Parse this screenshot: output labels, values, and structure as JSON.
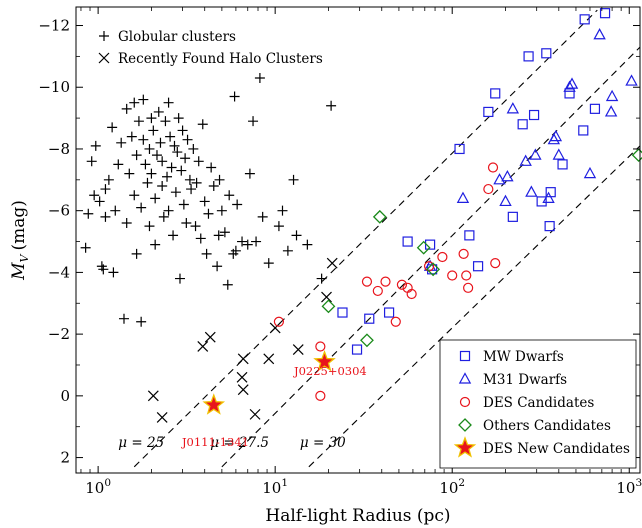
{
  "chart_data": {
    "type": "scatter",
    "xlabel": "Half-light Radius (pc)",
    "ylabel_main": "M",
    "ylabel_sub": "V",
    "ylabel_unit": "(mag)",
    "xscale": "log",
    "xlim": [
      0.75,
      1150
    ],
    "ylim": [
      2.5,
      -12.6
    ],
    "y_inverted": true,
    "x_ticks": [
      {
        "value": 1,
        "base": "10",
        "exp": "0"
      },
      {
        "value": 10,
        "base": "10",
        "exp": "1"
      },
      {
        "value": 100,
        "base": "10",
        "exp": "2"
      },
      {
        "value": 1000,
        "base": "10",
        "exp": "3"
      }
    ],
    "y_ticks": [
      {
        "value": -12,
        "label": "−12"
      },
      {
        "value": -10,
        "label": "−10"
      },
      {
        "value": -8,
        "label": "−8"
      },
      {
        "value": -6,
        "label": "−6"
      },
      {
        "value": -4,
        "label": "−4"
      },
      {
        "value": -2,
        "label": "−2"
      },
      {
        "value": 0,
        "label": "0"
      },
      {
        "value": 2,
        "label": "2"
      }
    ],
    "grid": false,
    "legend_top_left": [
      {
        "name": "Globular clusters",
        "marker": "plus",
        "color": "#000000"
      },
      {
        "name": "Recently Found Halo Clusters",
        "marker": "cross",
        "color": "#000000"
      }
    ],
    "legend_bottom_right": [
      {
        "name": "MW Dwarfs",
        "marker": "square",
        "color": "#1f1fe0"
      },
      {
        "name": "M31 Dwarfs",
        "marker": "triangle",
        "color": "#1f1fe0"
      },
      {
        "name": "DES Candidates",
        "marker": "circle",
        "color": "#e8141c"
      },
      {
        "name": "Others Candidates",
        "marker": "diamond",
        "color": "#1a8a1a"
      },
      {
        "name": "DES New Candidates",
        "marker": "star",
        "color": "#e8141c"
      }
    ],
    "isophotes": [
      {
        "label": "μ = 25",
        "x": [
          1.6,
          660
        ],
        "y": [
          2.3,
          -12.5
        ],
        "label_x": 1.3,
        "label_y": 1.5
      },
      {
        "label": "μ = 27.5",
        "x": [
          5.0,
          1150
        ],
        "y": [
          2.3,
          -11.3
        ],
        "label_x": 4.3,
        "label_y": 1.5
      },
      {
        "label": "μ = 30",
        "x": [
          15.5,
          1150
        ],
        "y": [
          2.3,
          -8.1
        ],
        "label_x": 13.8,
        "label_y": 1.5
      }
    ],
    "series": [
      {
        "name": "Globular clusters",
        "marker": "plus",
        "color": "#000000",
        "points": [
          [
            0.85,
            -4.8
          ],
          [
            0.88,
            -5.9
          ],
          [
            0.92,
            -7.6
          ],
          [
            0.95,
            -6.5
          ],
          [
            0.97,
            -8.1
          ],
          [
            1.02,
            -6.3
          ],
          [
            1.05,
            -4.2
          ],
          [
            1.07,
            -4.1
          ],
          [
            1.1,
            -6.7
          ],
          [
            1.1,
            -5.8
          ],
          [
            1.15,
            -7.0
          ],
          [
            1.2,
            -8.7
          ],
          [
            1.22,
            -4.0
          ],
          [
            1.25,
            -6.0
          ],
          [
            1.3,
            -7.5
          ],
          [
            1.35,
            -8.2
          ],
          [
            1.4,
            -2.5
          ],
          [
            1.45,
            -9.3
          ],
          [
            1.45,
            -5.6
          ],
          [
            1.5,
            -7.2
          ],
          [
            1.55,
            -8.4
          ],
          [
            1.6,
            -6.5
          ],
          [
            1.6,
            -9.5
          ],
          [
            1.65,
            -7.8
          ],
          [
            1.65,
            -4.6
          ],
          [
            1.7,
            -8.9
          ],
          [
            1.75,
            -6.1
          ],
          [
            1.75,
            -2.4
          ],
          [
            1.8,
            -8.3
          ],
          [
            1.8,
            -9.6
          ],
          [
            1.85,
            -7.5
          ],
          [
            1.9,
            -6.9
          ],
          [
            1.95,
            -8.0
          ],
          [
            1.95,
            -5.5
          ],
          [
            2.0,
            -9.0
          ],
          [
            2.0,
            -7.2
          ],
          [
            2.05,
            -8.6
          ],
          [
            2.1,
            -6.4
          ],
          [
            2.1,
            -4.9
          ],
          [
            2.15,
            -7.8
          ],
          [
            2.2,
            -9.2
          ],
          [
            2.25,
            -8.2
          ],
          [
            2.3,
            -6.8
          ],
          [
            2.3,
            -7.6
          ],
          [
            2.35,
            -5.8
          ],
          [
            2.4,
            -8.9
          ],
          [
            2.45,
            -7.1
          ],
          [
            2.5,
            -9.5
          ],
          [
            2.5,
            -6.0
          ],
          [
            2.55,
            -8.4
          ],
          [
            2.6,
            -7.4
          ],
          [
            2.65,
            -5.2
          ],
          [
            2.7,
            -8.1
          ],
          [
            2.75,
            -6.6
          ],
          [
            2.8,
            -7.9
          ],
          [
            2.85,
            -9.0
          ],
          [
            2.9,
            -3.8
          ],
          [
            2.95,
            -7.3
          ],
          [
            3.0,
            -8.6
          ],
          [
            3.05,
            -6.2
          ],
          [
            3.1,
            -7.7
          ],
          [
            3.15,
            -5.6
          ],
          [
            3.2,
            -8.3
          ],
          [
            3.3,
            -7.0
          ],
          [
            3.35,
            -6.7
          ],
          [
            3.45,
            -8.0
          ],
          [
            3.55,
            -5.5
          ],
          [
            3.6,
            -6.9
          ],
          [
            3.7,
            -7.6
          ],
          [
            3.8,
            -5.1
          ],
          [
            3.9,
            -8.8
          ],
          [
            4.0,
            -6.3
          ],
          [
            4.1,
            -4.6
          ],
          [
            4.2,
            -5.9
          ],
          [
            4.35,
            -7.4
          ],
          [
            4.5,
            -6.8
          ],
          [
            4.7,
            -4.2
          ],
          [
            4.8,
            -5.2
          ],
          [
            4.85,
            -7.0
          ],
          [
            5.0,
            -6.0
          ],
          [
            5.2,
            -5.3
          ],
          [
            5.4,
            -3.6
          ],
          [
            5.5,
            -6.5
          ],
          [
            5.8,
            -4.6
          ],
          [
            5.9,
            -9.7
          ],
          [
            6.0,
            -4.7
          ],
          [
            6.1,
            -6.2
          ],
          [
            6.5,
            -5.0
          ],
          [
            7.0,
            -4.9
          ],
          [
            7.2,
            -7.2
          ],
          [
            7.5,
            -8.9
          ],
          [
            7.8,
            -5.0
          ],
          [
            8.5,
            -5.8
          ],
          [
            8.2,
            -10.3
          ],
          [
            9.2,
            -4.3
          ],
          [
            10.5,
            -5.5
          ],
          [
            11.0,
            -6.0
          ],
          [
            11.8,
            -4.7
          ],
          [
            12.7,
            -7.0
          ],
          [
            13.2,
            -5.2
          ],
          [
            15.2,
            -4.9
          ],
          [
            18.3,
            -3.8
          ],
          [
            20.7,
            -9.4
          ]
        ]
      },
      {
        "name": "Recently Found Halo Clusters",
        "marker": "cross",
        "color": "#000000",
        "points": [
          [
            2.05,
            0.0
          ],
          [
            2.3,
            0.7
          ],
          [
            3.9,
            -1.6
          ],
          [
            4.3,
            -1.9
          ],
          [
            6.6,
            -0.2
          ],
          [
            6.5,
            -0.6
          ],
          [
            6.6,
            -1.2
          ],
          [
            7.7,
            0.6
          ],
          [
            9.2,
            -1.2
          ],
          [
            10.0,
            -2.2
          ],
          [
            13.5,
            -1.5
          ],
          [
            21.0,
            -4.3
          ],
          [
            19.5,
            -3.2
          ]
        ]
      },
      {
        "name": "MW Dwarfs",
        "marker": "square",
        "color": "#1f1fe0",
        "points": [
          [
            24,
            -2.7
          ],
          [
            29,
            -1.5
          ],
          [
            34,
            -2.5
          ],
          [
            44,
            -2.7
          ],
          [
            56,
            -5.0
          ],
          [
            75,
            -4.9
          ],
          [
            77,
            -4.1
          ],
          [
            110,
            -8.0
          ],
          [
            125,
            -5.2
          ],
          [
            140,
            -4.2
          ],
          [
            160,
            -9.2
          ],
          [
            175,
            -9.8
          ],
          [
            220,
            -5.8
          ],
          [
            250,
            -8.8
          ],
          [
            270,
            -11.0
          ],
          [
            290,
            -9.1
          ],
          [
            320,
            -6.3
          ],
          [
            340,
            -11.1
          ],
          [
            355,
            -5.5
          ],
          [
            360,
            -6.6
          ],
          [
            420,
            -7.5
          ],
          [
            460,
            -9.8
          ],
          [
            550,
            -8.6
          ],
          [
            560,
            -12.2
          ],
          [
            640,
            -9.3
          ],
          [
            730,
            -12.4
          ]
        ]
      },
      {
        "name": "M31 Dwarfs",
        "marker": "triangle",
        "color": "#1f1fe0",
        "points": [
          [
            75,
            -4.2
          ],
          [
            115,
            -6.4
          ],
          [
            185,
            -7.0
          ],
          [
            200,
            -6.3
          ],
          [
            205,
            -7.1
          ],
          [
            220,
            -9.3
          ],
          [
            260,
            -7.6
          ],
          [
            280,
            -6.6
          ],
          [
            295,
            -7.8
          ],
          [
            350,
            -6.4
          ],
          [
            375,
            -8.3
          ],
          [
            385,
            -8.4
          ],
          [
            400,
            -7.8
          ],
          [
            460,
            -10.0
          ],
          [
            475,
            -10.1
          ],
          [
            600,
            -7.2
          ],
          [
            680,
            -11.7
          ],
          [
            790,
            -9.2
          ],
          [
            800,
            -9.7
          ],
          [
            1030,
            -10.2
          ]
        ]
      },
      {
        "name": "DES Candidates",
        "marker": "circle",
        "color": "#e8141c",
        "points": [
          [
            10.5,
            -2.4
          ],
          [
            18.0,
            -1.6
          ],
          [
            18.0,
            0.0
          ],
          [
            33.0,
            -3.7
          ],
          [
            38.0,
            -3.4
          ],
          [
            42.0,
            -3.7
          ],
          [
            48.0,
            -2.4
          ],
          [
            52.0,
            -3.6
          ],
          [
            56.0,
            -3.5
          ],
          [
            59.0,
            -3.3
          ],
          [
            74.0,
            -4.2
          ],
          [
            88.0,
            -4.5
          ],
          [
            100.0,
            -3.9
          ],
          [
            116.0,
            -4.6
          ],
          [
            120.0,
            -3.9
          ],
          [
            170.0,
            -7.4
          ],
          [
            175.0,
            -4.3
          ],
          [
            160.0,
            -6.7
          ],
          [
            123.0,
            -3.5
          ]
        ]
      },
      {
        "name": "Others Candidates",
        "marker": "diamond",
        "color": "#1a8a1a",
        "points": [
          [
            20,
            -2.9
          ],
          [
            33,
            -1.8
          ],
          [
            39,
            -5.8
          ],
          [
            69,
            -4.8
          ],
          [
            78,
            -4.1
          ],
          [
            1130,
            -7.8
          ]
        ]
      },
      {
        "name": "DES New Candidates",
        "marker": "star",
        "color": "#e8141c",
        "points": [
          [
            4.5,
            0.3
          ],
          [
            19.0,
            -1.1
          ]
        ]
      }
    ],
    "annotations": [
      {
        "text": "J0225+0304",
        "x": 20.5,
        "y": -0.8
      },
      {
        "text": "J0111-1341",
        "x": 4.6,
        "y": 1.5
      }
    ]
  }
}
